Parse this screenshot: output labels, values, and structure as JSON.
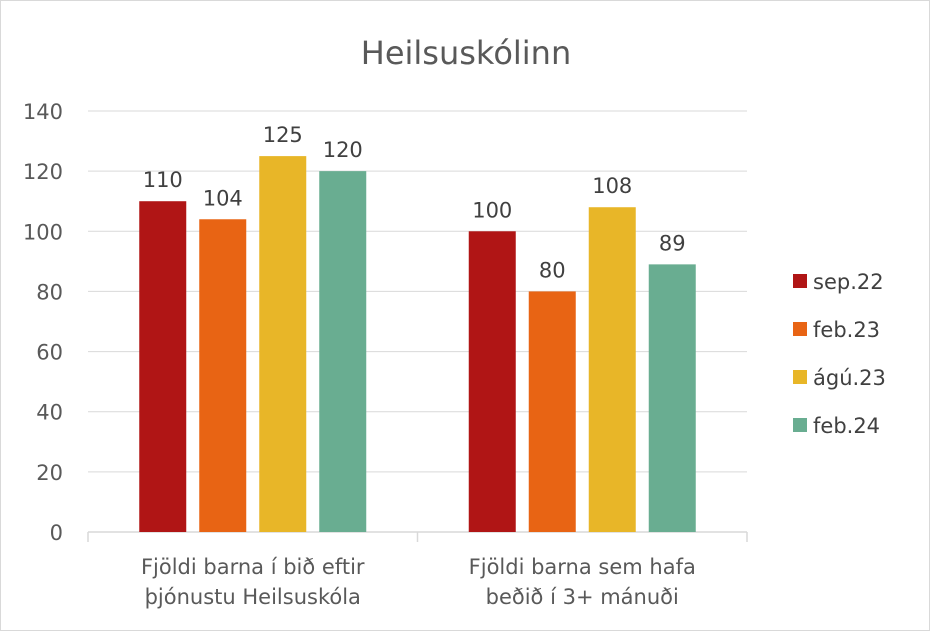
{
  "chart_data": {
    "type": "bar",
    "title": "Heilsuskólinn",
    "categories": [
      [
        "Fjöldi barna í bið eftir",
        "þjónustu Heilsuskóla"
      ],
      [
        "Fjöldi barna sem hafa",
        "beðið í 3+ mánuði"
      ]
    ],
    "series": [
      {
        "name": "sep.22",
        "color": "#b01515",
        "values": [
          110,
          100
        ]
      },
      {
        "name": "feb.23",
        "color": "#e86414",
        "values": [
          104,
          80
        ]
      },
      {
        "name": "ágú.23",
        "color": "#e8b628",
        "values": [
          125,
          108
        ]
      },
      {
        "name": "feb.24",
        "color": "#69ad91",
        "values": [
          120,
          89
        ]
      }
    ],
    "ylim": [
      0,
      140
    ],
    "yticks": [
      0,
      20,
      40,
      60,
      80,
      100,
      120,
      140
    ],
    "grid": true,
    "legend_position": "right",
    "data_labels": true
  }
}
